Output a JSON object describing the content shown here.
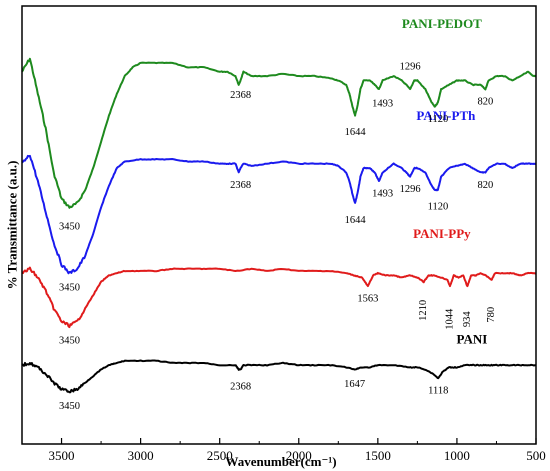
{
  "chart_data": {
    "type": "line",
    "xlabel": "Wavenumber(cm⁻¹)",
    "ylabel": "% Transmittance (a.u.)",
    "x_reversed": true,
    "xlim": [
      3750,
      500
    ],
    "xticks": [
      3500,
      3000,
      2500,
      2000,
      1500,
      1000,
      500
    ],
    "ylim": [
      0,
      100
    ],
    "grid": false,
    "legend": "none",
    "series": [
      {
        "name": "PANI-PEDOT",
        "color": "#1e8a1e",
        "points": [
          [
            3750,
            85
          ],
          [
            3700,
            88
          ],
          [
            3650,
            80
          ],
          [
            3600,
            72
          ],
          [
            3550,
            62
          ],
          [
            3500,
            56
          ],
          [
            3450,
            54
          ],
          [
            3400,
            55
          ],
          [
            3350,
            58
          ],
          [
            3300,
            63
          ],
          [
            3250,
            69
          ],
          [
            3200,
            75
          ],
          [
            3150,
            80
          ],
          [
            3100,
            84
          ],
          [
            3050,
            86
          ],
          [
            3000,
            87
          ],
          [
            2900,
            87
          ],
          [
            2800,
            87
          ],
          [
            2700,
            86
          ],
          [
            2600,
            86
          ],
          [
            2500,
            85
          ],
          [
            2450,
            85
          ],
          [
            2400,
            84
          ],
          [
            2380,
            82
          ],
          [
            2368,
            83
          ],
          [
            2350,
            85
          ],
          [
            2300,
            84
          ],
          [
            2200,
            84
          ],
          [
            2100,
            84.5
          ],
          [
            2000,
            84
          ],
          [
            1900,
            84
          ],
          [
            1800,
            83.5
          ],
          [
            1750,
            83
          ],
          [
            1700,
            82
          ],
          [
            1680,
            80
          ],
          [
            1660,
            77
          ],
          [
            1644,
            75
          ],
          [
            1630,
            77
          ],
          [
            1610,
            81
          ],
          [
            1590,
            83
          ],
          [
            1550,
            83
          ],
          [
            1520,
            82
          ],
          [
            1493,
            81
          ],
          [
            1470,
            83
          ],
          [
            1400,
            84
          ],
          [
            1350,
            83
          ],
          [
            1320,
            82
          ],
          [
            1296,
            81
          ],
          [
            1270,
            83
          ],
          [
            1250,
            83
          ],
          [
            1200,
            81
          ],
          [
            1160,
            78
          ],
          [
            1140,
            77
          ],
          [
            1120,
            78
          ],
          [
            1100,
            81
          ],
          [
            1050,
            82
          ],
          [
            1000,
            83
          ],
          [
            950,
            83
          ],
          [
            900,
            82
          ],
          [
            850,
            82
          ],
          [
            820,
            81
          ],
          [
            800,
            83
          ],
          [
            750,
            84
          ],
          [
            700,
            84
          ],
          [
            650,
            83
          ],
          [
            600,
            84
          ],
          [
            550,
            85
          ],
          [
            520,
            84
          ],
          [
            500,
            84
          ]
        ]
      },
      {
        "name": "PANI-PTh",
        "color": "#1a1aee",
        "points": [
          [
            3750,
            64
          ],
          [
            3700,
            66
          ],
          [
            3650,
            60
          ],
          [
            3600,
            53
          ],
          [
            3550,
            46
          ],
          [
            3500,
            41
          ],
          [
            3450,
            39
          ],
          [
            3400,
            40
          ],
          [
            3350,
            43
          ],
          [
            3300,
            48
          ],
          [
            3250,
            54
          ],
          [
            3200,
            59
          ],
          [
            3150,
            63
          ],
          [
            3100,
            64.5
          ],
          [
            3000,
            65
          ],
          [
            2900,
            65
          ],
          [
            2800,
            65
          ],
          [
            2700,
            64.5
          ],
          [
            2600,
            64.5
          ],
          [
            2500,
            64
          ],
          [
            2450,
            64
          ],
          [
            2400,
            64
          ],
          [
            2380,
            62
          ],
          [
            2368,
            63
          ],
          [
            2350,
            64
          ],
          [
            2300,
            63.5
          ],
          [
            2200,
            64
          ],
          [
            2100,
            64.5
          ],
          [
            2000,
            64
          ],
          [
            1900,
            64
          ],
          [
            1800,
            64
          ],
          [
            1750,
            63.5
          ],
          [
            1700,
            62
          ],
          [
            1680,
            60
          ],
          [
            1660,
            57
          ],
          [
            1644,
            55
          ],
          [
            1630,
            57
          ],
          [
            1610,
            61
          ],
          [
            1590,
            63
          ],
          [
            1550,
            63
          ],
          [
            1520,
            62
          ],
          [
            1493,
            60
          ],
          [
            1470,
            62
          ],
          [
            1400,
            64
          ],
          [
            1350,
            63
          ],
          [
            1320,
            62
          ],
          [
            1296,
            61
          ],
          [
            1270,
            63
          ],
          [
            1250,
            63
          ],
          [
            1200,
            62
          ],
          [
            1160,
            59
          ],
          [
            1140,
            58
          ],
          [
            1120,
            58
          ],
          [
            1100,
            61
          ],
          [
            1050,
            63
          ],
          [
            1000,
            63.5
          ],
          [
            950,
            64
          ],
          [
            900,
            63
          ],
          [
            850,
            62
          ],
          [
            820,
            62
          ],
          [
            800,
            63
          ],
          [
            750,
            64
          ],
          [
            700,
            64
          ],
          [
            650,
            63
          ],
          [
            600,
            64
          ],
          [
            550,
            64
          ],
          [
            520,
            64
          ],
          [
            500,
            64
          ]
        ]
      },
      {
        "name": "PANI-PPy",
        "color": "#e01b1b",
        "points": [
          [
            3750,
            39
          ],
          [
            3700,
            40
          ],
          [
            3650,
            38
          ],
          [
            3600,
            35
          ],
          [
            3550,
            31
          ],
          [
            3500,
            28
          ],
          [
            3450,
            27
          ],
          [
            3400,
            28
          ],
          [
            3350,
            31
          ],
          [
            3300,
            34
          ],
          [
            3250,
            37
          ],
          [
            3200,
            38.5
          ],
          [
            3150,
            39
          ],
          [
            3100,
            39.5
          ],
          [
            3000,
            39.5
          ],
          [
            2900,
            39.5
          ],
          [
            2800,
            40
          ],
          [
            2700,
            40
          ],
          [
            2600,
            40
          ],
          [
            2500,
            40
          ],
          [
            2400,
            39.5
          ],
          [
            2300,
            40
          ],
          [
            2200,
            39.5
          ],
          [
            2100,
            40
          ],
          [
            2000,
            39.5
          ],
          [
            1900,
            39.5
          ],
          [
            1800,
            39.5
          ],
          [
            1700,
            39
          ],
          [
            1650,
            38.5
          ],
          [
            1600,
            38
          ],
          [
            1563,
            36
          ],
          [
            1530,
            38.5
          ],
          [
            1500,
            39
          ],
          [
            1450,
            38.5
          ],
          [
            1400,
            38.5
          ],
          [
            1350,
            38
          ],
          [
            1300,
            38.5
          ],
          [
            1250,
            38
          ],
          [
            1210,
            37
          ],
          [
            1180,
            38.5
          ],
          [
            1150,
            38.5
          ],
          [
            1100,
            38
          ],
          [
            1060,
            37.5
          ],
          [
            1044,
            36
          ],
          [
            1020,
            38.5
          ],
          [
            990,
            38
          ],
          [
            960,
            38.5
          ],
          [
            934,
            36
          ],
          [
            910,
            38.5
          ],
          [
            880,
            38.5
          ],
          [
            850,
            39
          ],
          [
            820,
            38.5
          ],
          [
            780,
            37.5
          ],
          [
            760,
            39
          ],
          [
            700,
            39
          ],
          [
            650,
            39
          ],
          [
            600,
            38.5
          ],
          [
            550,
            39
          ],
          [
            500,
            39
          ]
        ]
      },
      {
        "name": "PANI",
        "color": "#000000",
        "points": [
          [
            3750,
            18
          ],
          [
            3700,
            18.5
          ],
          [
            3650,
            17.5
          ],
          [
            3600,
            16
          ],
          [
            3550,
            14
          ],
          [
            3500,
            12.5
          ],
          [
            3450,
            12
          ],
          [
            3400,
            12.5
          ],
          [
            3350,
            14
          ],
          [
            3300,
            15.5
          ],
          [
            3250,
            17
          ],
          [
            3200,
            18
          ],
          [
            3150,
            18.5
          ],
          [
            3100,
            19
          ],
          [
            3000,
            19
          ],
          [
            2900,
            19
          ],
          [
            2800,
            18.5
          ],
          [
            2700,
            18.5
          ],
          [
            2600,
            18.5
          ],
          [
            2500,
            18
          ],
          [
            2400,
            18
          ],
          [
            2380,
            17
          ],
          [
            2368,
            17
          ],
          [
            2350,
            18
          ],
          [
            2300,
            18
          ],
          [
            2200,
            18
          ],
          [
            2100,
            18.5
          ],
          [
            2000,
            18
          ],
          [
            1900,
            18
          ],
          [
            1800,
            18
          ],
          [
            1700,
            17.5
          ],
          [
            1647,
            17
          ],
          [
            1600,
            17.5
          ],
          [
            1550,
            17.5
          ],
          [
            1500,
            18
          ],
          [
            1400,
            18
          ],
          [
            1300,
            17.5
          ],
          [
            1250,
            17.5
          ],
          [
            1200,
            17
          ],
          [
            1150,
            16
          ],
          [
            1118,
            15
          ],
          [
            1090,
            16.5
          ],
          [
            1050,
            17.5
          ],
          [
            1000,
            17.5
          ],
          [
            950,
            18
          ],
          [
            900,
            18
          ],
          [
            850,
            18
          ],
          [
            800,
            18
          ],
          [
            750,
            18
          ],
          [
            700,
            18
          ],
          [
            650,
            18
          ],
          [
            600,
            18
          ],
          [
            550,
            18
          ],
          [
            500,
            18
          ]
        ]
      }
    ],
    "labels": [
      {
        "series": "PANI-PEDOT",
        "text": "PANI-PEDOT",
        "x": 1095,
        "y": 95
      },
      {
        "series": "PANI-PTh",
        "text": "PANI-PTh",
        "x": 1070,
        "y": 74
      },
      {
        "series": "PANI-PPy",
        "text": "PANI-PPy",
        "x": 1095,
        "y": 47
      },
      {
        "series": "PANI",
        "text": "PANI",
        "x": 905,
        "y": 23
      }
    ],
    "annotations": [
      {
        "text": "3450",
        "x": 3450,
        "y": 49,
        "rot": false
      },
      {
        "text": "2368",
        "x": 2368,
        "y": 79,
        "rot": false
      },
      {
        "text": "1644",
        "x": 1644,
        "y": 70.5,
        "rot": false
      },
      {
        "text": "1493",
        "x": 1470,
        "y": 77,
        "rot": false
      },
      {
        "text": "1296",
        "x": 1296,
        "y": 85.5,
        "rot": false
      },
      {
        "text": "1120",
        "x": 1120,
        "y": 73.5,
        "rot": false
      },
      {
        "text": "820",
        "x": 820,
        "y": 77.5,
        "rot": false
      },
      {
        "text": "3450",
        "x": 3450,
        "y": 35,
        "rot": false
      },
      {
        "text": "2368",
        "x": 2368,
        "y": 58.5,
        "rot": false
      },
      {
        "text": "1644",
        "x": 1644,
        "y": 50.5,
        "rot": false
      },
      {
        "text": "1493",
        "x": 1470,
        "y": 56.5,
        "rot": false
      },
      {
        "text": "1296",
        "x": 1296,
        "y": 57.5,
        "rot": false
      },
      {
        "text": "1120",
        "x": 1120,
        "y": 53.5,
        "rot": false
      },
      {
        "text": "820",
        "x": 820,
        "y": 58.5,
        "rot": false
      },
      {
        "text": "3450",
        "x": 3450,
        "y": 23,
        "rot": false
      },
      {
        "text": "1563",
        "x": 1563,
        "y": 32.5,
        "rot": false
      },
      {
        "text": "1210",
        "x": 1210,
        "y": 30.5,
        "rot": true
      },
      {
        "text": "1044",
        "x": 1044,
        "y": 28.5,
        "rot": true
      },
      {
        "text": "934",
        "x": 934,
        "y": 28.5,
        "rot": true
      },
      {
        "text": "780",
        "x": 780,
        "y": 29.5,
        "rot": true
      },
      {
        "text": "3450",
        "x": 3450,
        "y": 8,
        "rot": false
      },
      {
        "text": "2368",
        "x": 2368,
        "y": 12.5,
        "rot": false
      },
      {
        "text": "1647",
        "x": 1647,
        "y": 13,
        "rot": false
      },
      {
        "text": "1118",
        "x": 1118,
        "y": 11.5,
        "rot": false
      }
    ]
  }
}
